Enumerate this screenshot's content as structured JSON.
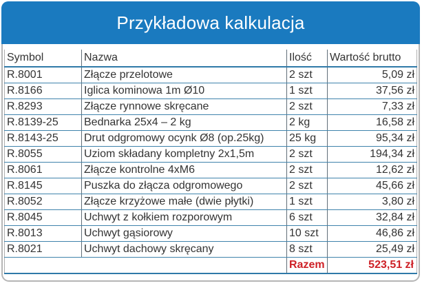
{
  "title": "Przykładowa kalkulacja",
  "colors": {
    "header_bg": "#1a7abf",
    "accent_red": "#ce2127",
    "row_line_blue": "#3e82ab"
  },
  "table": {
    "columns": [
      "Symbol",
      "Nazwa",
      "Ilość",
      "Wartość brutto"
    ],
    "rows": [
      {
        "symbol": "R.8001",
        "nazwa": "Złącze przelotowe",
        "ilosc": "2 szt",
        "wartosc": "5,09 zł"
      },
      {
        "symbol": "R.8166",
        "nazwa": "Iglica kominowa 1m Ø10",
        "ilosc": "1 szt",
        "wartosc": "37,56 zł"
      },
      {
        "symbol": "R.8293",
        "nazwa": "Złącze rynnowe skręcane",
        "ilosc": "2 szt",
        "wartosc": "7,33 zł"
      },
      {
        "symbol": "R.8139-25",
        "nazwa": "Bednarka 25x4  – 2 kg",
        "ilosc": "2 kg",
        "wartosc": "16,58 zł"
      },
      {
        "symbol": "R.8143-25",
        "nazwa": "Drut odgromowy ocynk Ø8 (op.25kg)",
        "ilosc": "25 kg",
        "wartosc": "95,34 zł"
      },
      {
        "symbol": "R.8055",
        "nazwa": "Uziom składany kompletny 2x1,5m",
        "ilosc": "2 szt",
        "wartosc": "194,34 zł"
      },
      {
        "symbol": "R.8061",
        "nazwa": "Złącze kontrolne 4xM6",
        "ilosc": "2 szt",
        "wartosc": "12,62 zł"
      },
      {
        "symbol": "R.8145",
        "nazwa": "Puszka do złącza odgromowego",
        "ilosc": "2 szt",
        "wartosc": "45,66 zł"
      },
      {
        "symbol": "R.8052",
        "nazwa": "Złącze krzyżowe małe (dwie płytki)",
        "ilosc": "1 szt",
        "wartosc": "3,80 zł"
      },
      {
        "symbol": "R.8045",
        "nazwa": "Uchwyt z kołkiem rozporowym",
        "ilosc": "6 szt",
        "wartosc": "32,84 zł"
      },
      {
        "symbol": "R.8013",
        "nazwa": "Uchwyt gąsiorowy",
        "ilosc": "10 szt",
        "wartosc": "46,86 zł"
      },
      {
        "symbol": "R.8021",
        "nazwa": "Uchwyt dachowy skręcany",
        "ilosc": "8 szt",
        "wartosc": "25,49 zł"
      }
    ],
    "summary": {
      "label": "Razem",
      "value": "523,51 zł"
    }
  }
}
